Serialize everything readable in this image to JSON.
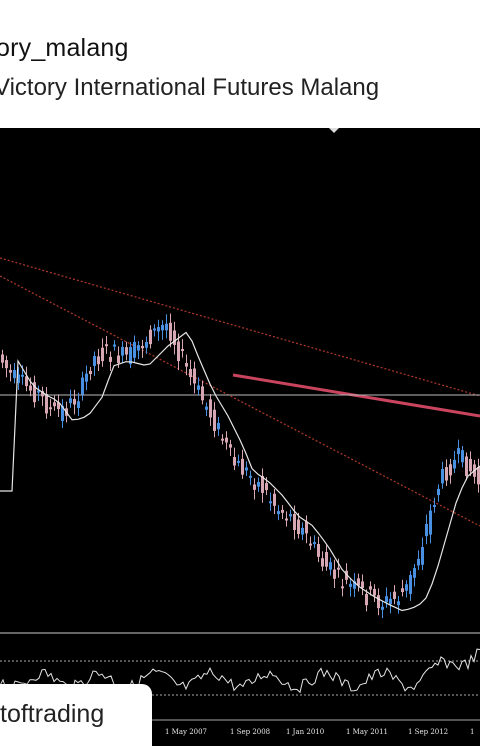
{
  "post": {
    "account_name": "ory_malang",
    "account_subtitle": "Victory International Futures Malang",
    "tag_label": "toftrading"
  },
  "chart_data": {
    "type": "candlestick",
    "x_tick_labels": [
      "1 May 2007",
      "1 Sep 2008",
      "1 Jan 2010",
      "1 May 2011",
      "1 Sep 2012",
      "1"
    ],
    "colors": {
      "background": "#000000",
      "bull_candle": "#4a90e2",
      "bear_candle": "#d7a7b4",
      "moving_average": "#e6e6e6",
      "trendline": "#c0392b",
      "resistance_line": "#c9445e",
      "horizontal_line": "#bbbbbb",
      "oscillator": "#e6e6e6"
    }
  }
}
